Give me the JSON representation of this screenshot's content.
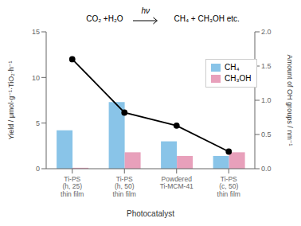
{
  "chart_data": {
    "type": "bar",
    "categories": [
      "Ti-PS\n(h, 25)\nthin film",
      "Ti-PS\n(h, 50)\nthin film",
      "Powdered\nTi-MCM-41",
      "Ti-PS\n(c, 50)\nthin film"
    ],
    "series": [
      {
        "name": "CH₄",
        "color": "#89C4E8",
        "values": [
          4.2,
          7.3,
          3.0,
          1.4
        ]
      },
      {
        "name": "CH₃OH",
        "color": "#E8A0BB",
        "values": [
          0.1,
          1.8,
          1.4,
          1.8
        ]
      },
      {
        "type": "line",
        "axis": "y2",
        "color": "black",
        "marker": "o",
        "values": [
          1.6,
          0.82,
          0.63,
          0.25
        ]
      }
    ],
    "xlabel": "Photocatalyst",
    "ylabel": "Yield / μmol·g⁻¹·TiO₂·h⁻¹",
    "y2label": "Amount of OH groups / nm⁻¹",
    "ylim": [
      0,
      15
    ],
    "yticks": [
      0,
      5,
      10,
      15
    ],
    "y2lim": [
      0,
      2.0
    ],
    "y2ticks": [
      {
        "value": 0,
        "label": "0.0"
      },
      0.5,
      {
        "value": 1.0,
        "label": "1.0"
      },
      1.5,
      {
        "value": 2.0,
        "label": "2.0"
      }
    ],
    "annotations": [
      "CO₂ +H₂O",
      "hν",
      "CH₄ + CH₃OH etc."
    ],
    "legend": "upper right",
    "grid": false
  }
}
